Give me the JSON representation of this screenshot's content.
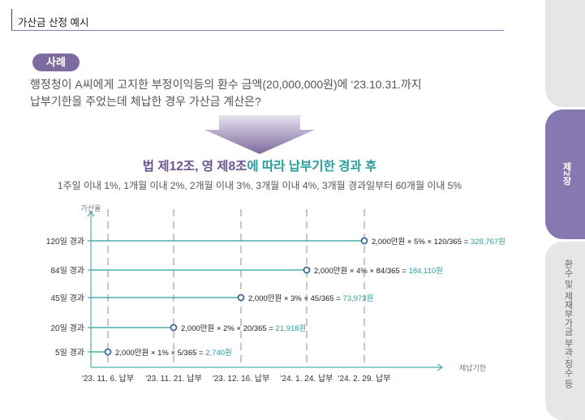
{
  "header": {
    "title": "가산금 산정 예시"
  },
  "case": {
    "tag": "사례",
    "line1": "행정청이 A씨에게 고지한 부정이익등의 환수 금액(20,000,000원)에 ‘23.10.31.까지",
    "line2": "납부기한을 주었는데 체납한 경우 가산금 계산은?"
  },
  "law": {
    "title_part1": "법 제12조, 영 제8조",
    "title_part2": "에 따라 납부기한 경과 후",
    "subtitle": "1주일 이내 1%, 1개월 이내 2%, 2개월 이내 3%, 3개월 이내 4%, 3개월 경과일부터 60개월 이내 5%"
  },
  "side": {
    "active_tab": "제2장",
    "other_tab": "환수 및 제재부가금 부과·징수 등"
  },
  "colors": {
    "purple": "#7d6a9e",
    "teal": "#2a9d9c",
    "grid": "#c8c8c8"
  },
  "chart_data": {
    "type": "timeline",
    "y_axis_label": "가산율",
    "x_axis_label": "체납기한",
    "dates": [
      "'23. 11. 6. 납부",
      "'23. 11. 21. 납부",
      "'23. 12. 16. 납부",
      "'24. 1. 24. 납부",
      "'24. 2. 29. 납부"
    ],
    "rows": [
      {
        "label": "5일 경과",
        "date_index": 0,
        "formula": "2,000만원 × 1% × 5/365 =",
        "result": "2,740원"
      },
      {
        "label": "20일 경과",
        "date_index": 1,
        "formula": "2,000만원 × 2% × 20/365 =",
        "result": "21,918원"
      },
      {
        "label": "45일 경과",
        "date_index": 2,
        "formula": "2,000만원 × 3% × 45/365 =",
        "result": "73,973원"
      },
      {
        "label": "84일 경과",
        "date_index": 3,
        "formula": "2,000만원 × 4% × 84/365 =",
        "result": "184,110원"
      },
      {
        "label": "120일 경과",
        "date_index": 4,
        "formula": "2,000만원 × 5% × 120/365 =",
        "result": "328,767원"
      }
    ]
  }
}
